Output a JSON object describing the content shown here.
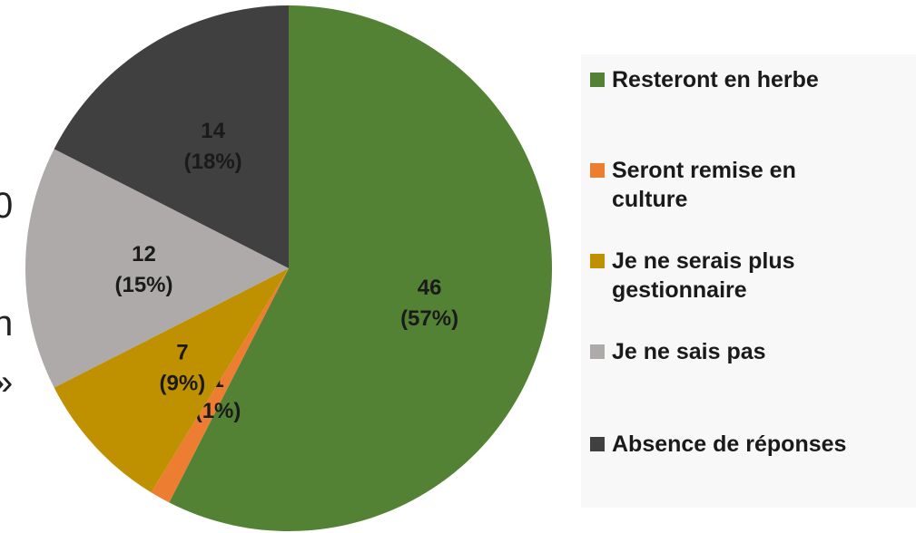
{
  "chart_data": {
    "type": "pie",
    "categories": [
      "Resteront en herbe",
      "Seront remise en culture",
      "Je ne serais plus gestionnaire",
      "Je ne sais pas",
      "Absence de réponses"
    ],
    "values": [
      46,
      1,
      7,
      12,
      14
    ],
    "value_labels": [
      "46 (57%)",
      "1 (1%)",
      "7 (9%)",
      "12 (15%)",
      "14 (18%)"
    ],
    "colors": [
      "#548235",
      "#ed7d31",
      "#bf9000",
      "#aeaaaa",
      "#404040"
    ],
    "legend": "right"
  },
  "cropped_text": [
    "0",
    ",",
    "n",
    "»"
  ]
}
